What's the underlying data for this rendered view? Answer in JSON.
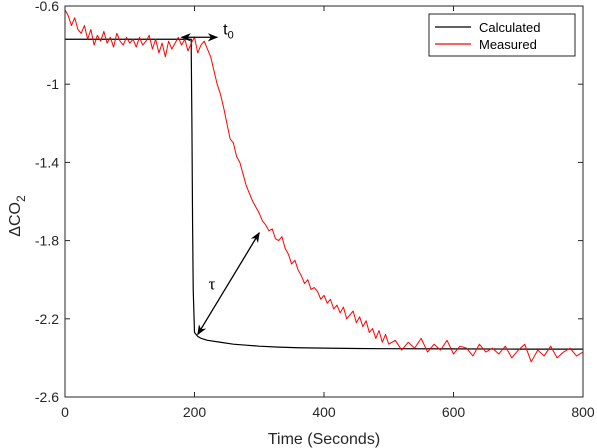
{
  "chart_data": {
    "type": "line",
    "xlabel": "Time (Seconds)",
    "ylabel": "ΔCO2",
    "ylabel_main": "ΔCO",
    "ylabel_sub": "2",
    "xlim": [
      0,
      800
    ],
    "ylim": [
      -2.6,
      -0.6
    ],
    "xticks": [
      0,
      200,
      400,
      600,
      800
    ],
    "xtick_labels": [
      "0",
      "200",
      "400",
      "600",
      "800"
    ],
    "yticks": [
      -0.6,
      -1.0,
      -1.4,
      -1.8,
      -2.2,
      -2.6
    ],
    "ytick_labels": [
      "-0.6",
      "-1",
      "-1.4",
      "-1.8",
      "-2.2",
      "-2.6"
    ],
    "grid": false,
    "legend_position": "top-right",
    "legend": [
      "Calculated",
      "Measured"
    ],
    "series": [
      {
        "name": "Calculated",
        "color": "#000000",
        "x": [
          0,
          195,
          195,
          196,
          197,
          198,
          200,
          205,
          210,
          220,
          240,
          260,
          280,
          300,
          330,
          360,
          400,
          450,
          500,
          600,
          700,
          800
        ],
        "y": [
          -0.77,
          -0.77,
          -0.84,
          -1.2,
          -1.7,
          -2.05,
          -2.27,
          -2.29,
          -2.3,
          -2.31,
          -2.32,
          -2.33,
          -2.335,
          -2.34,
          -2.345,
          -2.348,
          -2.35,
          -2.352,
          -2.353,
          -2.354,
          -2.355,
          -2.355
        ]
      },
      {
        "name": "Measured",
        "color": "#ff0000",
        "x": [
          0,
          5,
          10,
          15,
          20,
          25,
          30,
          35,
          40,
          45,
          50,
          55,
          60,
          65,
          70,
          75,
          80,
          85,
          90,
          95,
          100,
          105,
          110,
          115,
          120,
          125,
          130,
          135,
          140,
          145,
          150,
          155,
          160,
          165,
          170,
          175,
          180,
          185,
          190,
          195,
          200,
          205,
          210,
          215,
          220,
          225,
          230,
          235,
          240,
          245,
          250,
          255,
          260,
          265,
          270,
          275,
          280,
          285,
          290,
          295,
          300,
          305,
          310,
          315,
          320,
          325,
          330,
          335,
          340,
          345,
          350,
          355,
          360,
          365,
          370,
          375,
          380,
          385,
          390,
          395,
          400,
          405,
          410,
          415,
          420,
          425,
          430,
          435,
          440,
          445,
          450,
          455,
          460,
          465,
          470,
          475,
          480,
          485,
          490,
          495,
          500,
          510,
          520,
          530,
          540,
          550,
          560,
          570,
          580,
          590,
          600,
          610,
          620,
          630,
          640,
          650,
          660,
          670,
          680,
          690,
          700,
          710,
          720,
          730,
          740,
          750,
          760,
          770,
          780,
          790,
          800
        ],
        "y": [
          -0.62,
          -0.65,
          -0.7,
          -0.66,
          -0.72,
          -0.74,
          -0.7,
          -0.77,
          -0.72,
          -0.8,
          -0.75,
          -0.78,
          -0.73,
          -0.79,
          -0.76,
          -0.81,
          -0.74,
          -0.78,
          -0.8,
          -0.76,
          -0.79,
          -0.77,
          -0.81,
          -0.76,
          -0.8,
          -0.78,
          -0.75,
          -0.82,
          -0.77,
          -0.84,
          -0.79,
          -0.86,
          -0.78,
          -0.82,
          -0.79,
          -0.76,
          -0.8,
          -0.77,
          -0.83,
          -0.79,
          -0.76,
          -0.84,
          -0.8,
          -0.78,
          -0.82,
          -0.86,
          -0.93,
          -1.0,
          -1.05,
          -1.12,
          -1.2,
          -1.28,
          -1.3,
          -1.37,
          -1.4,
          -1.46,
          -1.52,
          -1.56,
          -1.6,
          -1.63,
          -1.66,
          -1.7,
          -1.72,
          -1.75,
          -1.74,
          -1.79,
          -1.8,
          -1.78,
          -1.84,
          -1.87,
          -1.92,
          -1.9,
          -1.95,
          -1.98,
          -2.02,
          -2.0,
          -2.05,
          -2.04,
          -2.06,
          -2.1,
          -2.08,
          -2.12,
          -2.1,
          -2.15,
          -2.13,
          -2.17,
          -2.14,
          -2.2,
          -2.18,
          -2.16,
          -2.22,
          -2.19,
          -2.24,
          -2.21,
          -2.27,
          -2.25,
          -2.3,
          -2.26,
          -2.32,
          -2.28,
          -2.33,
          -2.31,
          -2.36,
          -2.32,
          -2.35,
          -2.3,
          -2.37,
          -2.33,
          -2.36,
          -2.31,
          -2.38,
          -2.34,
          -2.35,
          -2.39,
          -2.33,
          -2.37,
          -2.35,
          -2.38,
          -2.34,
          -2.4,
          -2.36,
          -2.33,
          -2.42,
          -2.36,
          -2.39,
          -2.34,
          -2.4,
          -2.37,
          -2.35,
          -2.39,
          -2.37
        ]
      }
    ],
    "annotations": [
      {
        "text": "t",
        "sub": "0",
        "type": "double-arrow",
        "from": [
          180,
          -0.76
        ],
        "to": [
          235,
          -0.76
        ]
      },
      {
        "text": "τ",
        "type": "double-arrow",
        "from": [
          205,
          -2.28
        ],
        "to": [
          300,
          -1.76
        ]
      }
    ]
  }
}
